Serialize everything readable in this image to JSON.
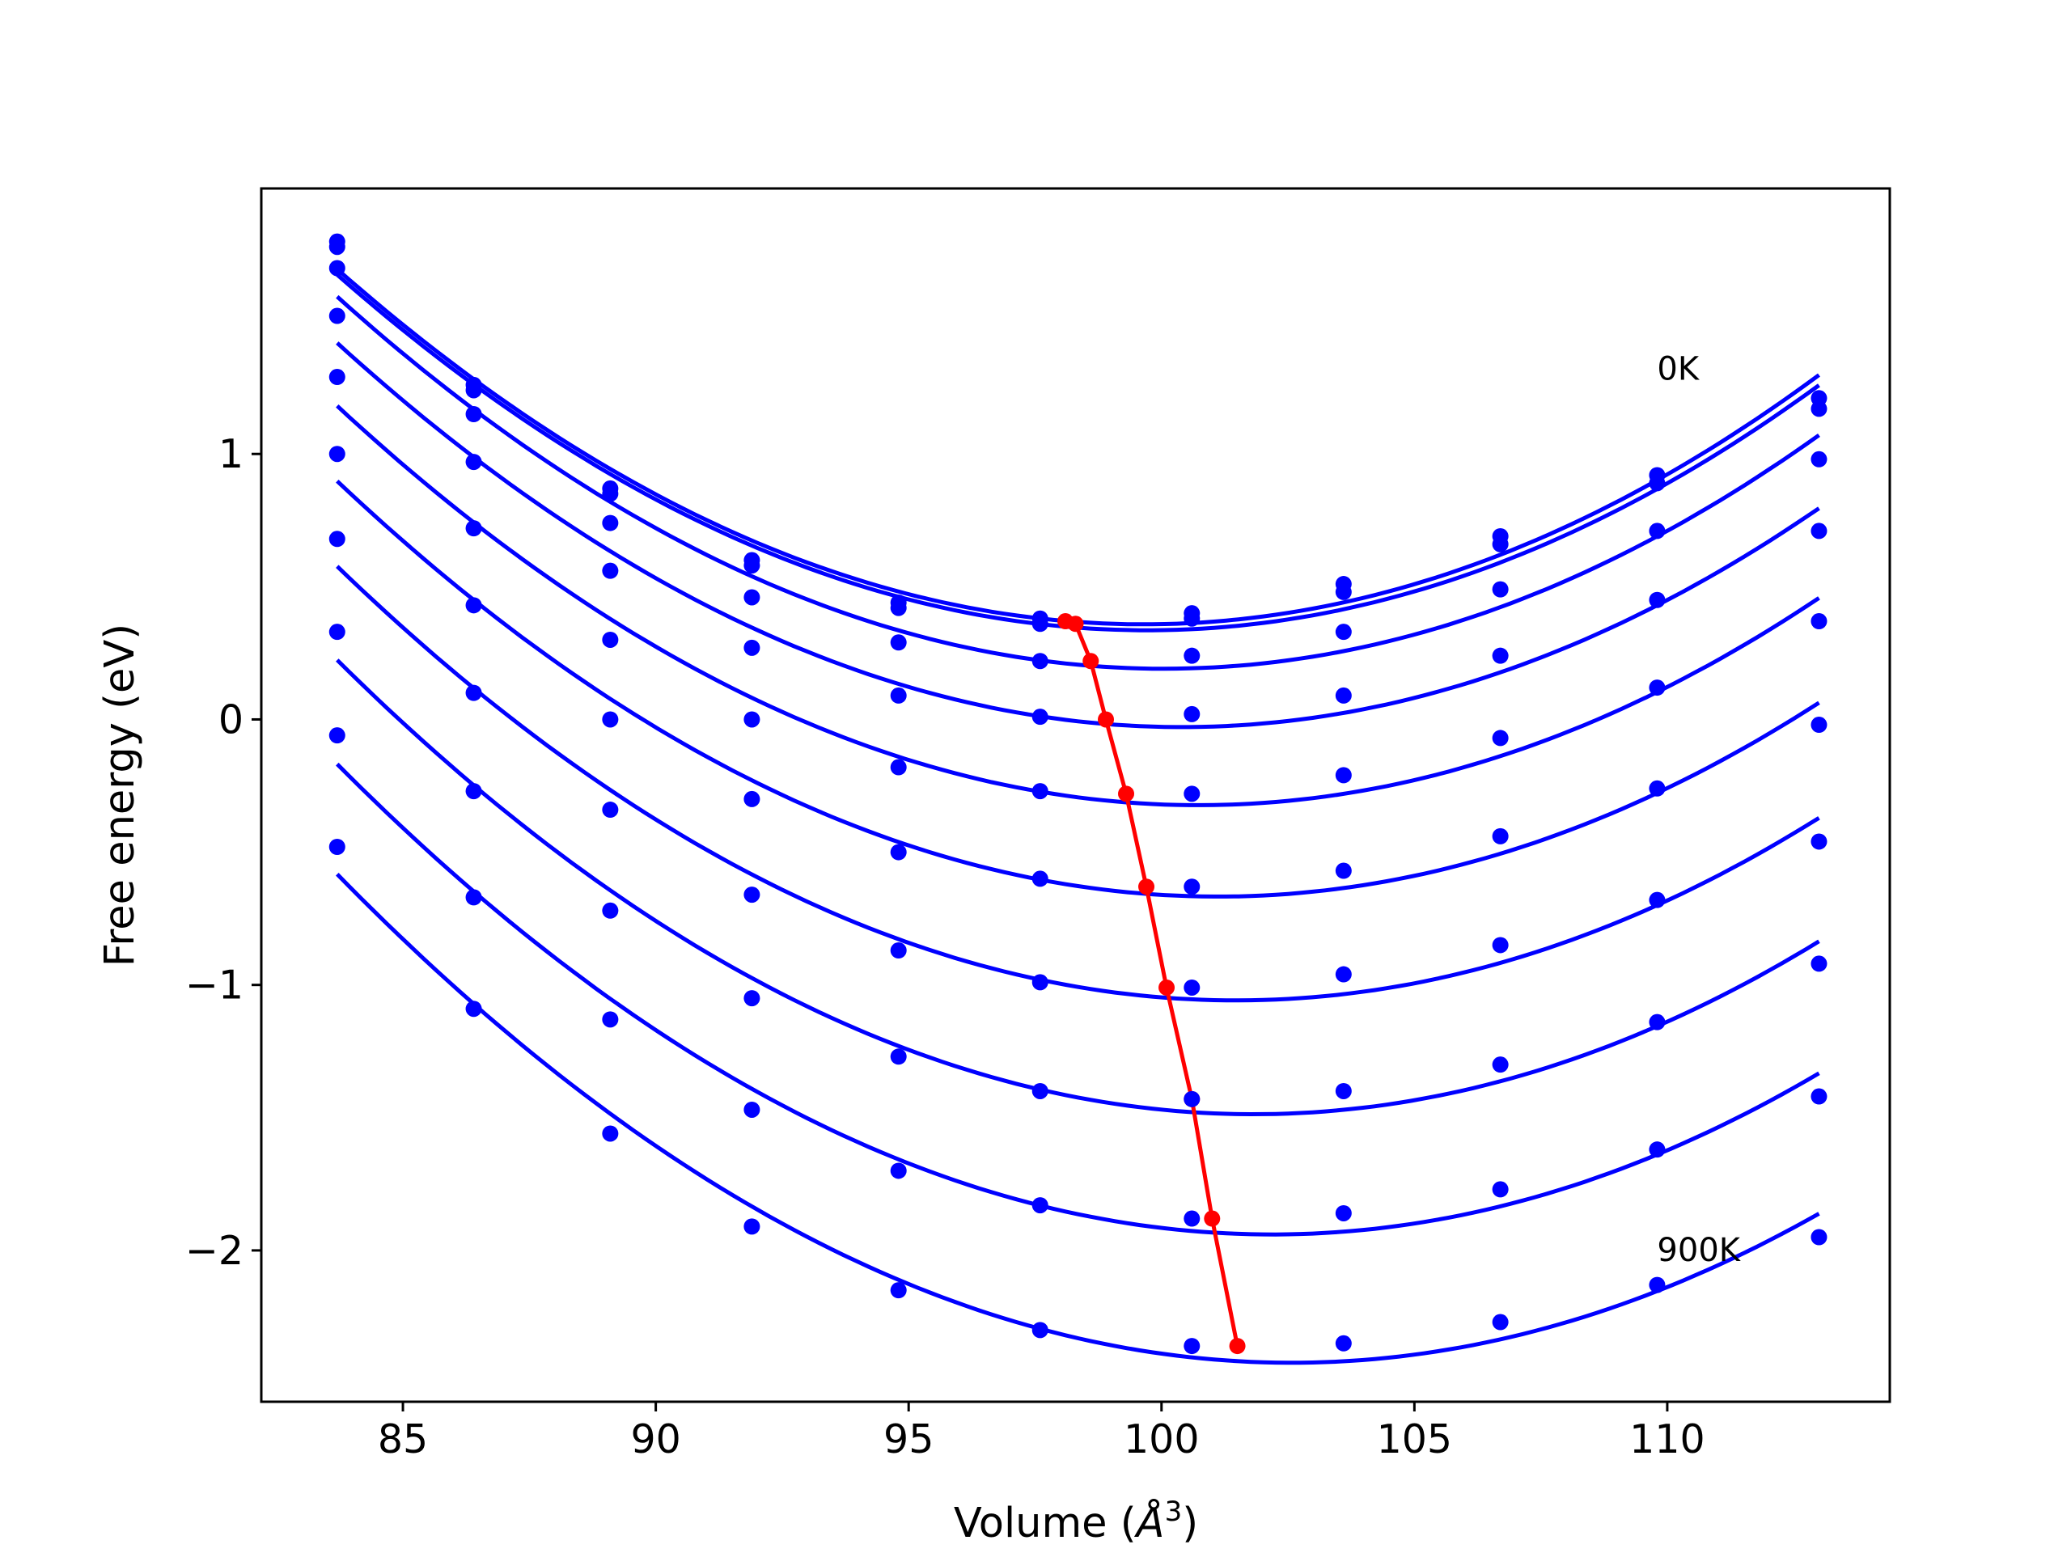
{
  "chart_data": {
    "type": "line",
    "title": "",
    "xlabel": "Volume (",
    "xlabel_unit": "Å",
    "xlabel_exp": "3",
    "xlabel_close": ")",
    "ylabel": "Free energy (eV)",
    "xlim": [
      82.2,
      114.4
    ],
    "ylim": [
      -2.57,
      2.0
    ],
    "xticks": [
      85,
      90,
      95,
      100,
      105,
      110
    ],
    "xtick_labels": [
      "85",
      "90",
      "95",
      "100",
      "105",
      "110"
    ],
    "yticks": [
      1,
      0,
      -1,
      -2
    ],
    "ytick_labels": [
      "1",
      "0",
      "−1",
      "−2"
    ],
    "grid": false,
    "annotations": [
      {
        "text": "0K",
        "x": 109.8,
        "y": 1.28
      },
      {
        "text": "900K",
        "x": 109.8,
        "y": -2.04
      }
    ],
    "colors": {
      "isotherm": "#0000ff",
      "equilibrium": "#ff0000"
    },
    "volumes": [
      83.7,
      86.4,
      89.1,
      91.9,
      94.8,
      97.6,
      100.6,
      103.6,
      106.7,
      109.8,
      113.0
    ],
    "series": [
      {
        "values": [
          1.8,
          1.26,
          0.87,
          0.6,
          0.44,
          0.38,
          0.4,
          0.51,
          0.69,
          0.92,
          1.21
        ]
      },
      {
        "values": [
          1.78,
          1.24,
          0.85,
          0.58,
          0.42,
          0.36,
          0.38,
          0.48,
          0.66,
          0.89,
          1.17
        ]
      },
      {
        "values": [
          1.7,
          1.15,
          0.74,
          0.46,
          0.29,
          0.22,
          0.24,
          0.33,
          0.49,
          0.71,
          0.98
        ]
      },
      {
        "values": [
          1.52,
          0.97,
          0.56,
          0.27,
          0.09,
          0.01,
          0.02,
          0.09,
          0.24,
          0.45,
          0.71
        ]
      },
      {
        "values": [
          1.29,
          0.72,
          0.3,
          0.0,
          -0.18,
          -0.27,
          -0.28,
          -0.21,
          -0.07,
          0.12,
          0.37
        ]
      },
      {
        "values": [
          1.0,
          0.43,
          0.0,
          -0.3,
          -0.5,
          -0.6,
          -0.63,
          -0.57,
          -0.44,
          -0.26,
          -0.02
        ]
      },
      {
        "values": [
          0.68,
          0.1,
          -0.34,
          -0.66,
          -0.87,
          -0.99,
          -1.01,
          -0.96,
          -0.85,
          -0.68,
          -0.46
        ]
      },
      {
        "values": [
          0.33,
          -0.27,
          -0.72,
          -1.05,
          -1.27,
          -1.4,
          -1.43,
          -1.4,
          -1.3,
          -1.14,
          -0.92
        ]
      },
      {
        "values": [
          -0.06,
          -0.67,
          -1.13,
          -1.47,
          -1.7,
          -1.83,
          -1.88,
          -1.86,
          -1.77,
          -1.62,
          -1.42
        ]
      },
      {
        "values": [
          -0.48,
          -1.09,
          -1.56,
          -1.91,
          -2.15,
          -2.3,
          -2.36,
          -2.35,
          -2.27,
          -2.13,
          -1.95
        ]
      }
    ],
    "equilibrium": {
      "x": [
        98.1,
        98.3,
        98.6,
        98.9,
        99.3,
        99.7,
        100.1,
        100.6,
        101.0,
        101.5
      ],
      "y": [
        0.37,
        0.36,
        0.22,
        0.0,
        -0.28,
        -0.63,
        -1.01,
        -1.43,
        -1.88,
        -2.36
      ]
    }
  }
}
